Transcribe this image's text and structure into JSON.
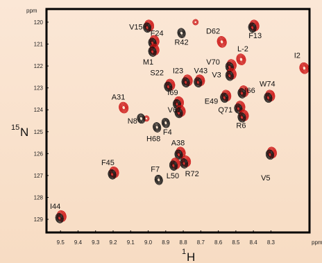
{
  "chart_data": {
    "type": "scatter",
    "title": "",
    "x_axis": {
      "range": [
        9.58,
        8.08
      ],
      "reversed": true,
      "ticks": [
        9.5,
        9.4,
        9.3,
        9.2,
        9.1,
        9.0,
        8.9,
        8.8,
        8.7,
        8.6,
        8.5,
        8.4,
        8.3
      ],
      "tick_labels": [
        "9.5",
        "9.4",
        "9.3",
        "9.2",
        "9.1",
        "9.0",
        "8.9",
        "8.8",
        "8.7",
        "8.6",
        "8.5",
        "8.4",
        "8.3"
      ],
      "unit": "ppm",
      "label_nucleus": "1",
      "label_main": "H"
    },
    "y_axis": {
      "range": [
        119.4,
        129.6
      ],
      "reversed": true,
      "ticks": [
        120,
        121,
        122,
        123,
        124,
        125,
        126,
        127,
        128,
        129
      ],
      "tick_labels": [
        "120",
        "121",
        "122",
        "123",
        "124",
        "125",
        "126",
        "127",
        "128",
        "129"
      ],
      "unit": "ppm",
      "label_nucleus": "15",
      "label_main": "N"
    },
    "series": [
      {
        "color": "#cc1111"
      },
      {
        "color": "#111111"
      }
    ],
    "peaks": [
      {
        "label": "V15",
        "h": 9.0,
        "n": 120.2,
        "lh": 9.07,
        "ln": 120.2,
        "red": true,
        "black": true
      },
      {
        "label": "F24",
        "h": 8.97,
        "n": 120.9,
        "lh": 8.95,
        "ln": 120.5,
        "red": true,
        "black": true
      },
      {
        "label": "M1",
        "h": 8.97,
        "n": 121.3,
        "lh": 9.0,
        "ln": 121.8,
        "red": true,
        "black": true
      },
      {
        "label": "R42",
        "h": 8.81,
        "n": 120.5,
        "lh": 8.81,
        "ln": 120.9,
        "red": false,
        "black": true
      },
      {
        "label": "D62",
        "h": 8.58,
        "n": 120.9,
        "lh": 8.63,
        "ln": 120.4,
        "red": true,
        "black": false
      },
      {
        "label": "F13",
        "h": 8.4,
        "n": 120.2,
        "lh": 8.39,
        "ln": 120.6,
        "red": true,
        "black": true
      },
      {
        "label": "L-2",
        "h": 8.47,
        "n": 121.7,
        "lh": 8.46,
        "ln": 121.2,
        "red": true,
        "black": false
      },
      {
        "label": "I2",
        "h": 8.11,
        "n": 122.1,
        "lh": 8.15,
        "ln": 121.5,
        "red": true,
        "black": false
      },
      {
        "label": "V70",
        "h": 8.53,
        "n": 122.0,
        "lh": 8.63,
        "ln": 121.8,
        "red": true,
        "black": true
      },
      {
        "label": "V43",
        "h": 8.71,
        "n": 122.7,
        "lh": 8.7,
        "ln": 122.2,
        "red": true,
        "black": true
      },
      {
        "label": "V3",
        "h": 8.53,
        "n": 122.4,
        "lh": 8.61,
        "ln": 122.4,
        "red": true,
        "black": true
      },
      {
        "label": "S22",
        "h": 8.88,
        "n": 122.9,
        "lh": 8.95,
        "ln": 122.3,
        "red": true,
        "black": true
      },
      {
        "label": "I23",
        "h": 8.78,
        "n": 122.7,
        "lh": 8.83,
        "ln": 122.2,
        "red": true,
        "black": true
      },
      {
        "label": "W74",
        "h": 8.31,
        "n": 123.4,
        "lh": 8.32,
        "ln": 122.8,
        "red": true,
        "black": true
      },
      {
        "label": "I66",
        "h": 8.46,
        "n": 123.2,
        "lh": 8.42,
        "ln": 123.1,
        "red": true,
        "black": true
      },
      {
        "label": "I69",
        "h": 8.83,
        "n": 123.7,
        "lh": 8.86,
        "ln": 123.2,
        "red": true,
        "black": true
      },
      {
        "label": "E49",
        "h": 8.56,
        "n": 123.4,
        "lh": 8.64,
        "ln": 123.6,
        "red": true,
        "black": true
      },
      {
        "label": "A31",
        "h": 9.14,
        "n": 123.9,
        "lh": 9.17,
        "ln": 123.4,
        "red": true,
        "black": false
      },
      {
        "label": "V67",
        "h": 8.82,
        "n": 124.1,
        "lh": 8.85,
        "ln": 124.0,
        "red": true,
        "black": true
      },
      {
        "label": "Q71",
        "h": 8.48,
        "n": 123.9,
        "lh": 8.56,
        "ln": 124.0,
        "red": true,
        "black": true
      },
      {
        "label": "N8",
        "h": 9.04,
        "n": 124.4,
        "lh": 9.09,
        "ln": 124.5,
        "red": false,
        "black": true
      },
      {
        "label": "R6",
        "h": 8.46,
        "n": 124.3,
        "lh": 8.47,
        "ln": 124.7,
        "red": true,
        "black": true
      },
      {
        "label": "F4",
        "h": 8.9,
        "n": 124.6,
        "lh": 8.89,
        "ln": 125.0,
        "red": false,
        "black": true
      },
      {
        "label": "H68",
        "h": 8.95,
        "n": 124.8,
        "lh": 8.97,
        "ln": 125.3,
        "red": false,
        "black": true
      },
      {
        "label": "A38",
        "h": 8.82,
        "n": 126.0,
        "lh": 8.83,
        "ln": 125.5,
        "red": true,
        "black": true
      },
      {
        "label": "F45",
        "h": 9.2,
        "n": 126.9,
        "lh": 9.23,
        "ln": 126.4,
        "red": true,
        "black": true
      },
      {
        "label": "V5",
        "h": 8.3,
        "n": 126.0,
        "lh": 8.33,
        "ln": 127.1,
        "red": true,
        "black": true
      },
      {
        "label": "R72",
        "h": 8.79,
        "n": 126.4,
        "lh": 8.75,
        "ln": 126.9,
        "red": true,
        "black": true
      },
      {
        "label": "F7",
        "h": 8.94,
        "n": 127.2,
        "lh": 8.96,
        "ln": 126.7,
        "red": false,
        "black": true
      },
      {
        "label": "L50",
        "h": 8.85,
        "n": 126.5,
        "lh": 8.86,
        "ln": 127.0,
        "red": true,
        "black": true
      },
      {
        "label": "I44",
        "h": 9.5,
        "n": 128.9,
        "lh": 9.53,
        "ln": 128.4,
        "red": true,
        "black": true
      }
    ],
    "minor_peaks": [
      {
        "h": 8.73,
        "n": 120.0,
        "red": true,
        "black": false
      },
      {
        "h": 9.01,
        "n": 124.4,
        "red": true,
        "black": false
      }
    ]
  }
}
